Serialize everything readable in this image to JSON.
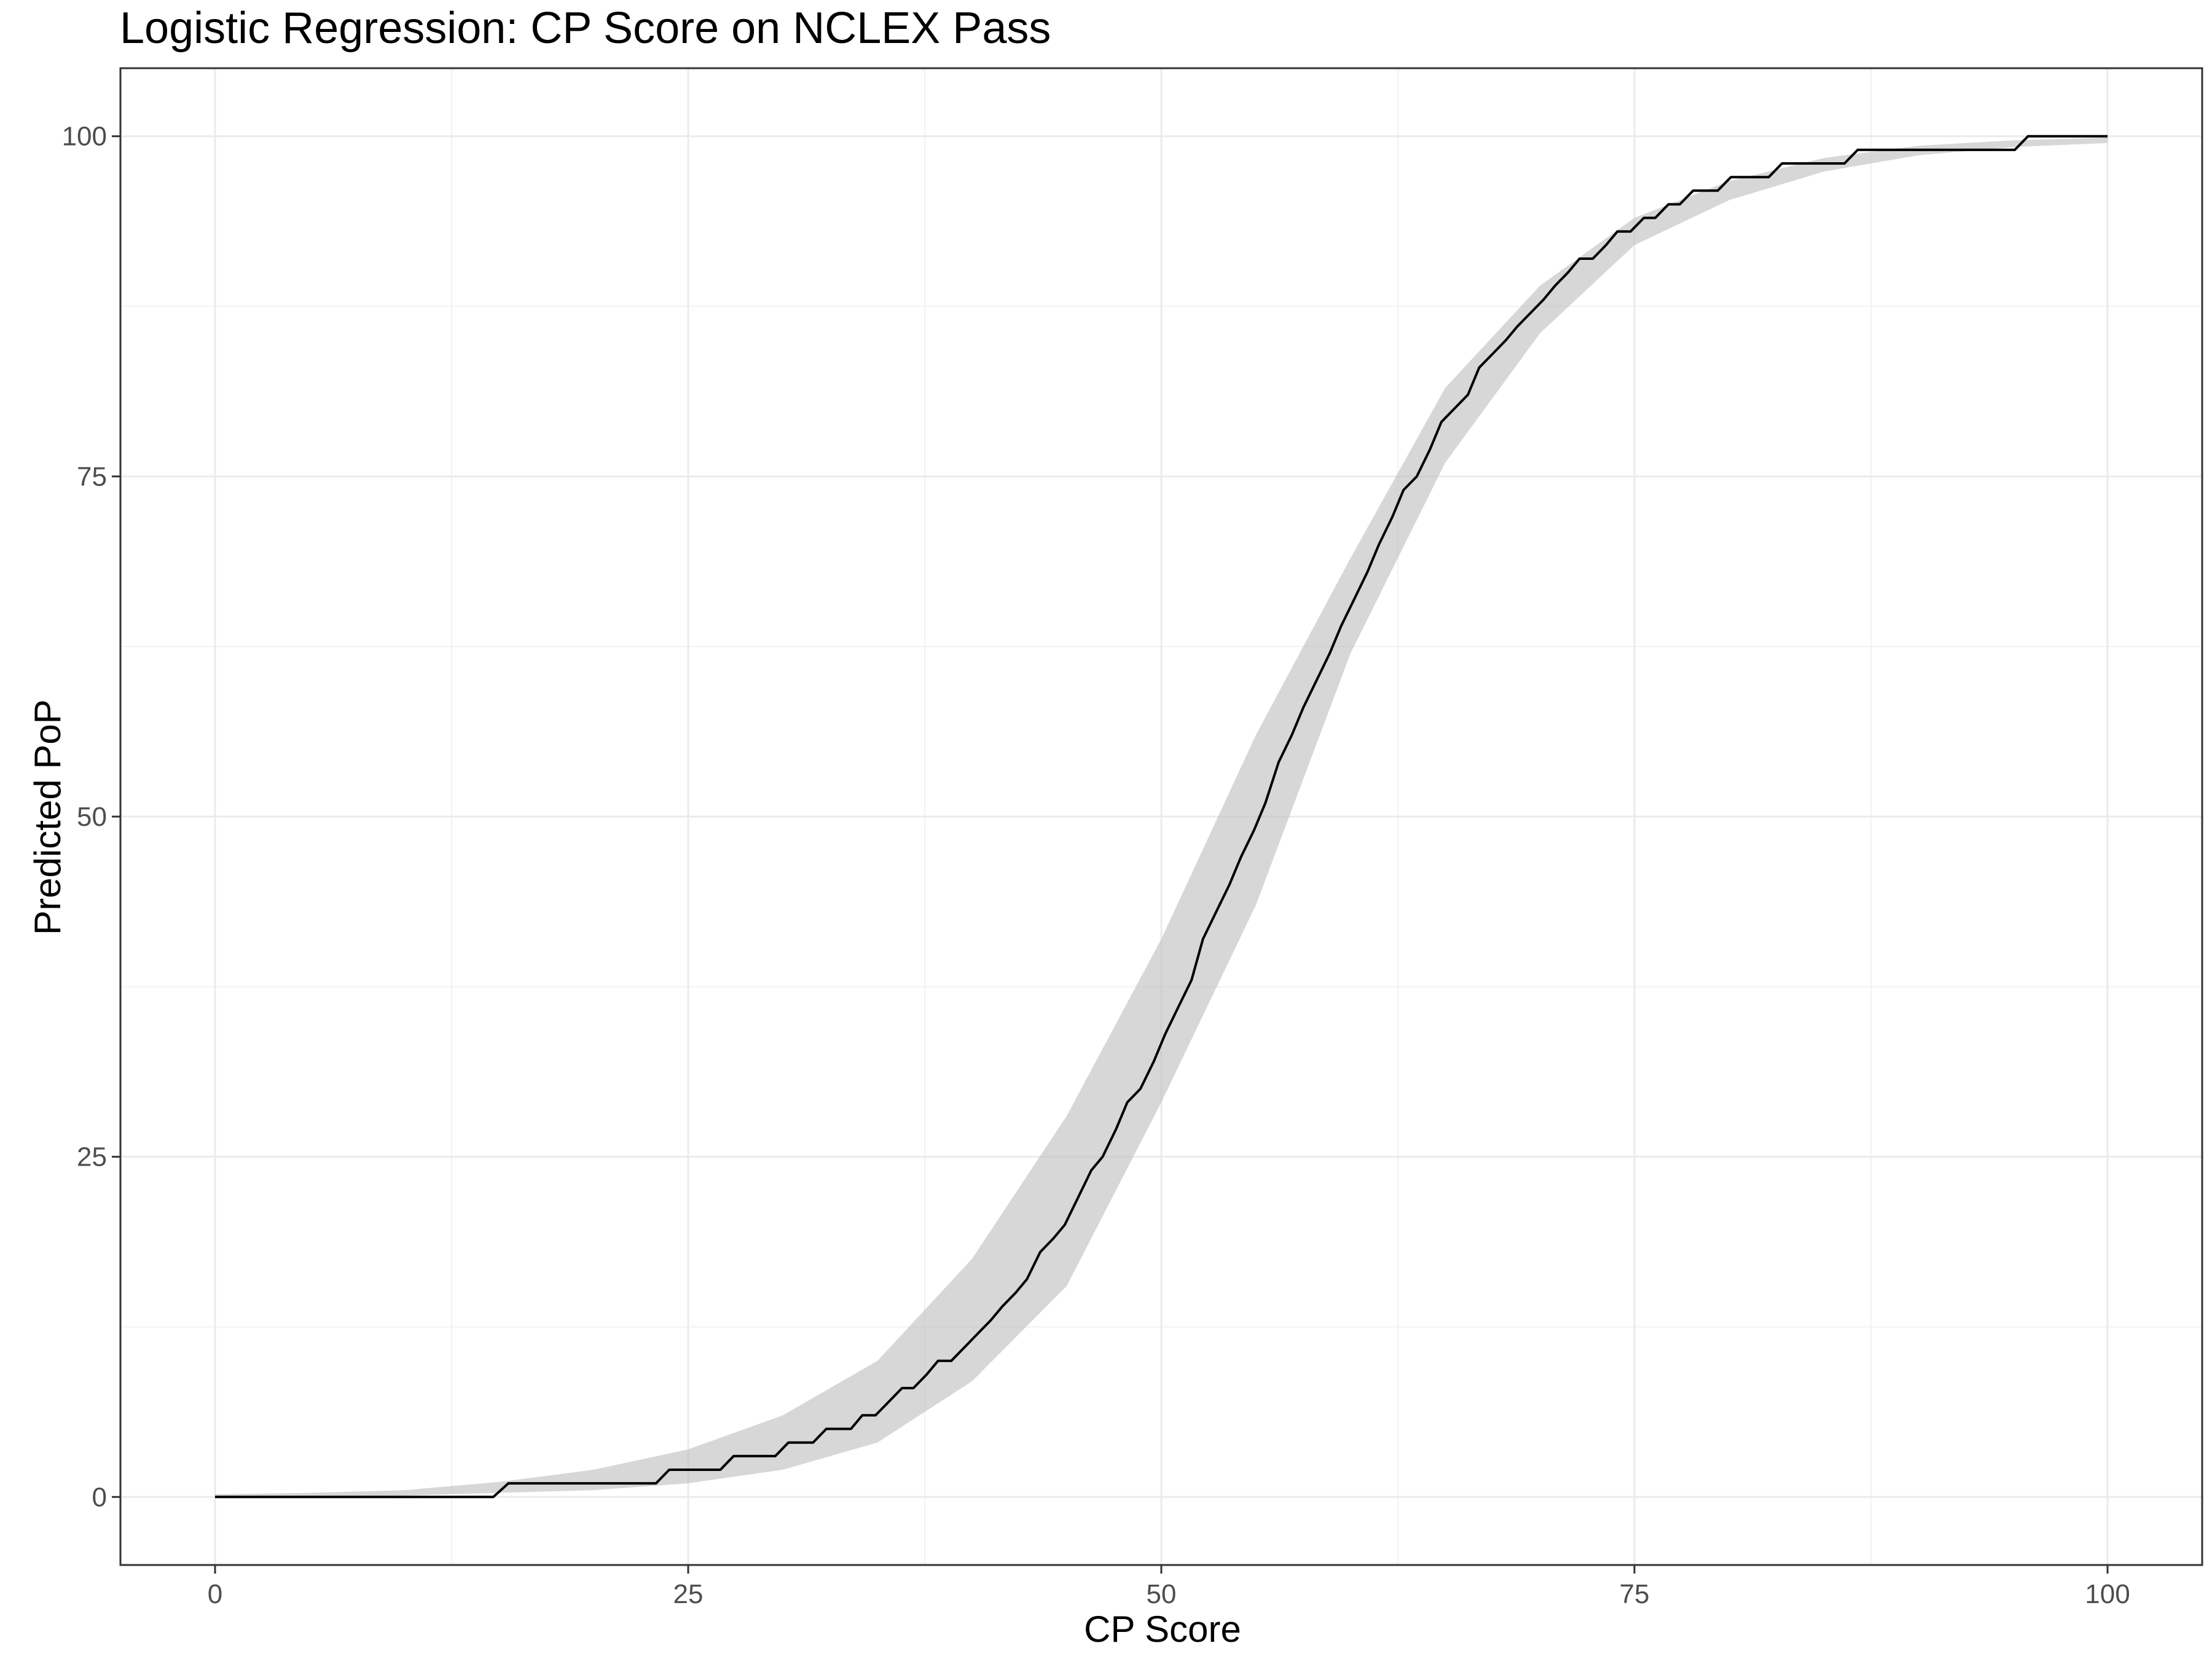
{
  "chart_data": {
    "type": "line",
    "title": "Logistic Regression: CP Score on NCLEX Pass",
    "xlabel": "CP Score",
    "ylabel": "Predicted PoP",
    "xlim": [
      -5,
      105
    ],
    "ylim": [
      -5,
      105
    ],
    "x_ticks": [
      0,
      25,
      50,
      75,
      100
    ],
    "y_ticks": [
      0,
      25,
      50,
      75,
      100
    ],
    "grid": true,
    "legend": "none",
    "colors": {
      "line": "#000000",
      "band": "#bebebe",
      "grid": "#ebebeb",
      "border": "#333333"
    },
    "series": [
      {
        "values": [
          {
            "x": 0,
            "y": 0
          },
          {
            "x": 14.7,
            "y": 0
          },
          {
            "x": 15.5,
            "y": 1
          },
          {
            "x": 23.3,
            "y": 1
          },
          {
            "x": 24,
            "y": 2
          },
          {
            "x": 26.7,
            "y": 2
          },
          {
            "x": 27.4,
            "y": 3
          },
          {
            "x": 29.6,
            "y": 3
          },
          {
            "x": 30.3,
            "y": 4
          },
          {
            "x": 31.6,
            "y": 4
          },
          {
            "x": 32.3,
            "y": 5
          },
          {
            "x": 33.6,
            "y": 5
          },
          {
            "x": 34.2,
            "y": 6
          },
          {
            "x": 34.9,
            "y": 6
          },
          {
            "x": 35.6,
            "y": 7
          },
          {
            "x": 36.3,
            "y": 8
          },
          {
            "x": 36.9,
            "y": 8
          },
          {
            "x": 37.6,
            "y": 9
          },
          {
            "x": 38.2,
            "y": 10
          },
          {
            "x": 38.9,
            "y": 10
          },
          {
            "x": 39.6,
            "y": 11
          },
          {
            "x": 40.3,
            "y": 12
          },
          {
            "x": 41,
            "y": 13
          },
          {
            "x": 41.6,
            "y": 14
          },
          {
            "x": 42.3,
            "y": 15
          },
          {
            "x": 42.9,
            "y": 16
          },
          {
            "x": 43.6,
            "y": 18
          },
          {
            "x": 44.3,
            "y": 19
          },
          {
            "x": 44.9,
            "y": 20
          },
          {
            "x": 45.6,
            "y": 22
          },
          {
            "x": 46.3,
            "y": 24
          },
          {
            "x": 46.9,
            "y": 25
          },
          {
            "x": 47.6,
            "y": 27
          },
          {
            "x": 48.2,
            "y": 29
          },
          {
            "x": 48.9,
            "y": 30
          },
          {
            "x": 49.6,
            "y": 32
          },
          {
            "x": 50.2,
            "y": 34
          },
          {
            "x": 50.9,
            "y": 36
          },
          {
            "x": 51.6,
            "y": 38
          },
          {
            "x": 52.2,
            "y": 41
          },
          {
            "x": 52.9,
            "y": 43
          },
          {
            "x": 53.6,
            "y": 45
          },
          {
            "x": 54.2,
            "y": 47
          },
          {
            "x": 54.9,
            "y": 49
          },
          {
            "x": 55.5,
            "y": 51
          },
          {
            "x": 56.2,
            "y": 54
          },
          {
            "x": 56.9,
            "y": 56
          },
          {
            "x": 57.5,
            "y": 58
          },
          {
            "x": 58.2,
            "y": 60
          },
          {
            "x": 58.9,
            "y": 62
          },
          {
            "x": 59.5,
            "y": 64
          },
          {
            "x": 60.2,
            "y": 66
          },
          {
            "x": 60.9,
            "y": 68
          },
          {
            "x": 61.5,
            "y": 70
          },
          {
            "x": 62.2,
            "y": 72
          },
          {
            "x": 62.8,
            "y": 74
          },
          {
            "x": 63.5,
            "y": 75
          },
          {
            "x": 64.2,
            "y": 77
          },
          {
            "x": 64.8,
            "y": 79
          },
          {
            "x": 65.5,
            "y": 80
          },
          {
            "x": 66.2,
            "y": 81
          },
          {
            "x": 66.8,
            "y": 83
          },
          {
            "x": 67.5,
            "y": 84
          },
          {
            "x": 68.2,
            "y": 85
          },
          {
            "x": 68.8,
            "y": 86
          },
          {
            "x": 69.5,
            "y": 87
          },
          {
            "x": 70.2,
            "y": 88
          },
          {
            "x": 70.8,
            "y": 89
          },
          {
            "x": 71.5,
            "y": 90
          },
          {
            "x": 72.1,
            "y": 91
          },
          {
            "x": 72.8,
            "y": 91
          },
          {
            "x": 73.5,
            "y": 92
          },
          {
            "x": 74.1,
            "y": 93
          },
          {
            "x": 74.8,
            "y": 93
          },
          {
            "x": 75.5,
            "y": 94
          },
          {
            "x": 76.1,
            "y": 94
          },
          {
            "x": 76.8,
            "y": 95
          },
          {
            "x": 77.4,
            "y": 95
          },
          {
            "x": 78.1,
            "y": 96
          },
          {
            "x": 79.4,
            "y": 96
          },
          {
            "x": 80.1,
            "y": 97
          },
          {
            "x": 82.1,
            "y": 97
          },
          {
            "x": 82.8,
            "y": 98
          },
          {
            "x": 86.1,
            "y": 98
          },
          {
            "x": 86.8,
            "y": 99
          },
          {
            "x": 95.1,
            "y": 99
          },
          {
            "x": 95.8,
            "y": 100
          },
          {
            "x": 100,
            "y": 100
          }
        ],
        "band": [
          {
            "x": 0,
            "lower": 0,
            "upper": 0.2
          },
          {
            "x": 5,
            "lower": 0.05,
            "upper": 0.3
          },
          {
            "x": 10,
            "lower": 0.1,
            "upper": 0.5
          },
          {
            "x": 15,
            "lower": 0.3,
            "upper": 1.1
          },
          {
            "x": 20,
            "lower": 0.5,
            "upper": 2
          },
          {
            "x": 25,
            "lower": 1,
            "upper": 3.5
          },
          {
            "x": 30,
            "lower": 2,
            "upper": 6
          },
          {
            "x": 35,
            "lower": 4,
            "upper": 10
          },
          {
            "x": 40,
            "lower": 8.5,
            "upper": 17.5
          },
          {
            "x": 45,
            "lower": 15.5,
            "upper": 28
          },
          {
            "x": 50,
            "lower": 29,
            "upper": 41
          },
          {
            "x": 55,
            "lower": 43.5,
            "upper": 56
          },
          {
            "x": 60,
            "lower": 62,
            "upper": 69
          },
          {
            "x": 65,
            "lower": 76,
            "upper": 81.5
          },
          {
            "x": 70,
            "lower": 85.5,
            "upper": 89
          },
          {
            "x": 75,
            "lower": 92,
            "upper": 94
          },
          {
            "x": 80,
            "lower": 95.3,
            "upper": 96.7
          },
          {
            "x": 85,
            "lower": 97.4,
            "upper": 98.4
          },
          {
            "x": 90,
            "lower": 98.6,
            "upper": 99.3
          },
          {
            "x": 95,
            "lower": 99.2,
            "upper": 99.7
          },
          {
            "x": 100,
            "lower": 99.5,
            "upper": 99.9
          }
        ]
      }
    ]
  }
}
